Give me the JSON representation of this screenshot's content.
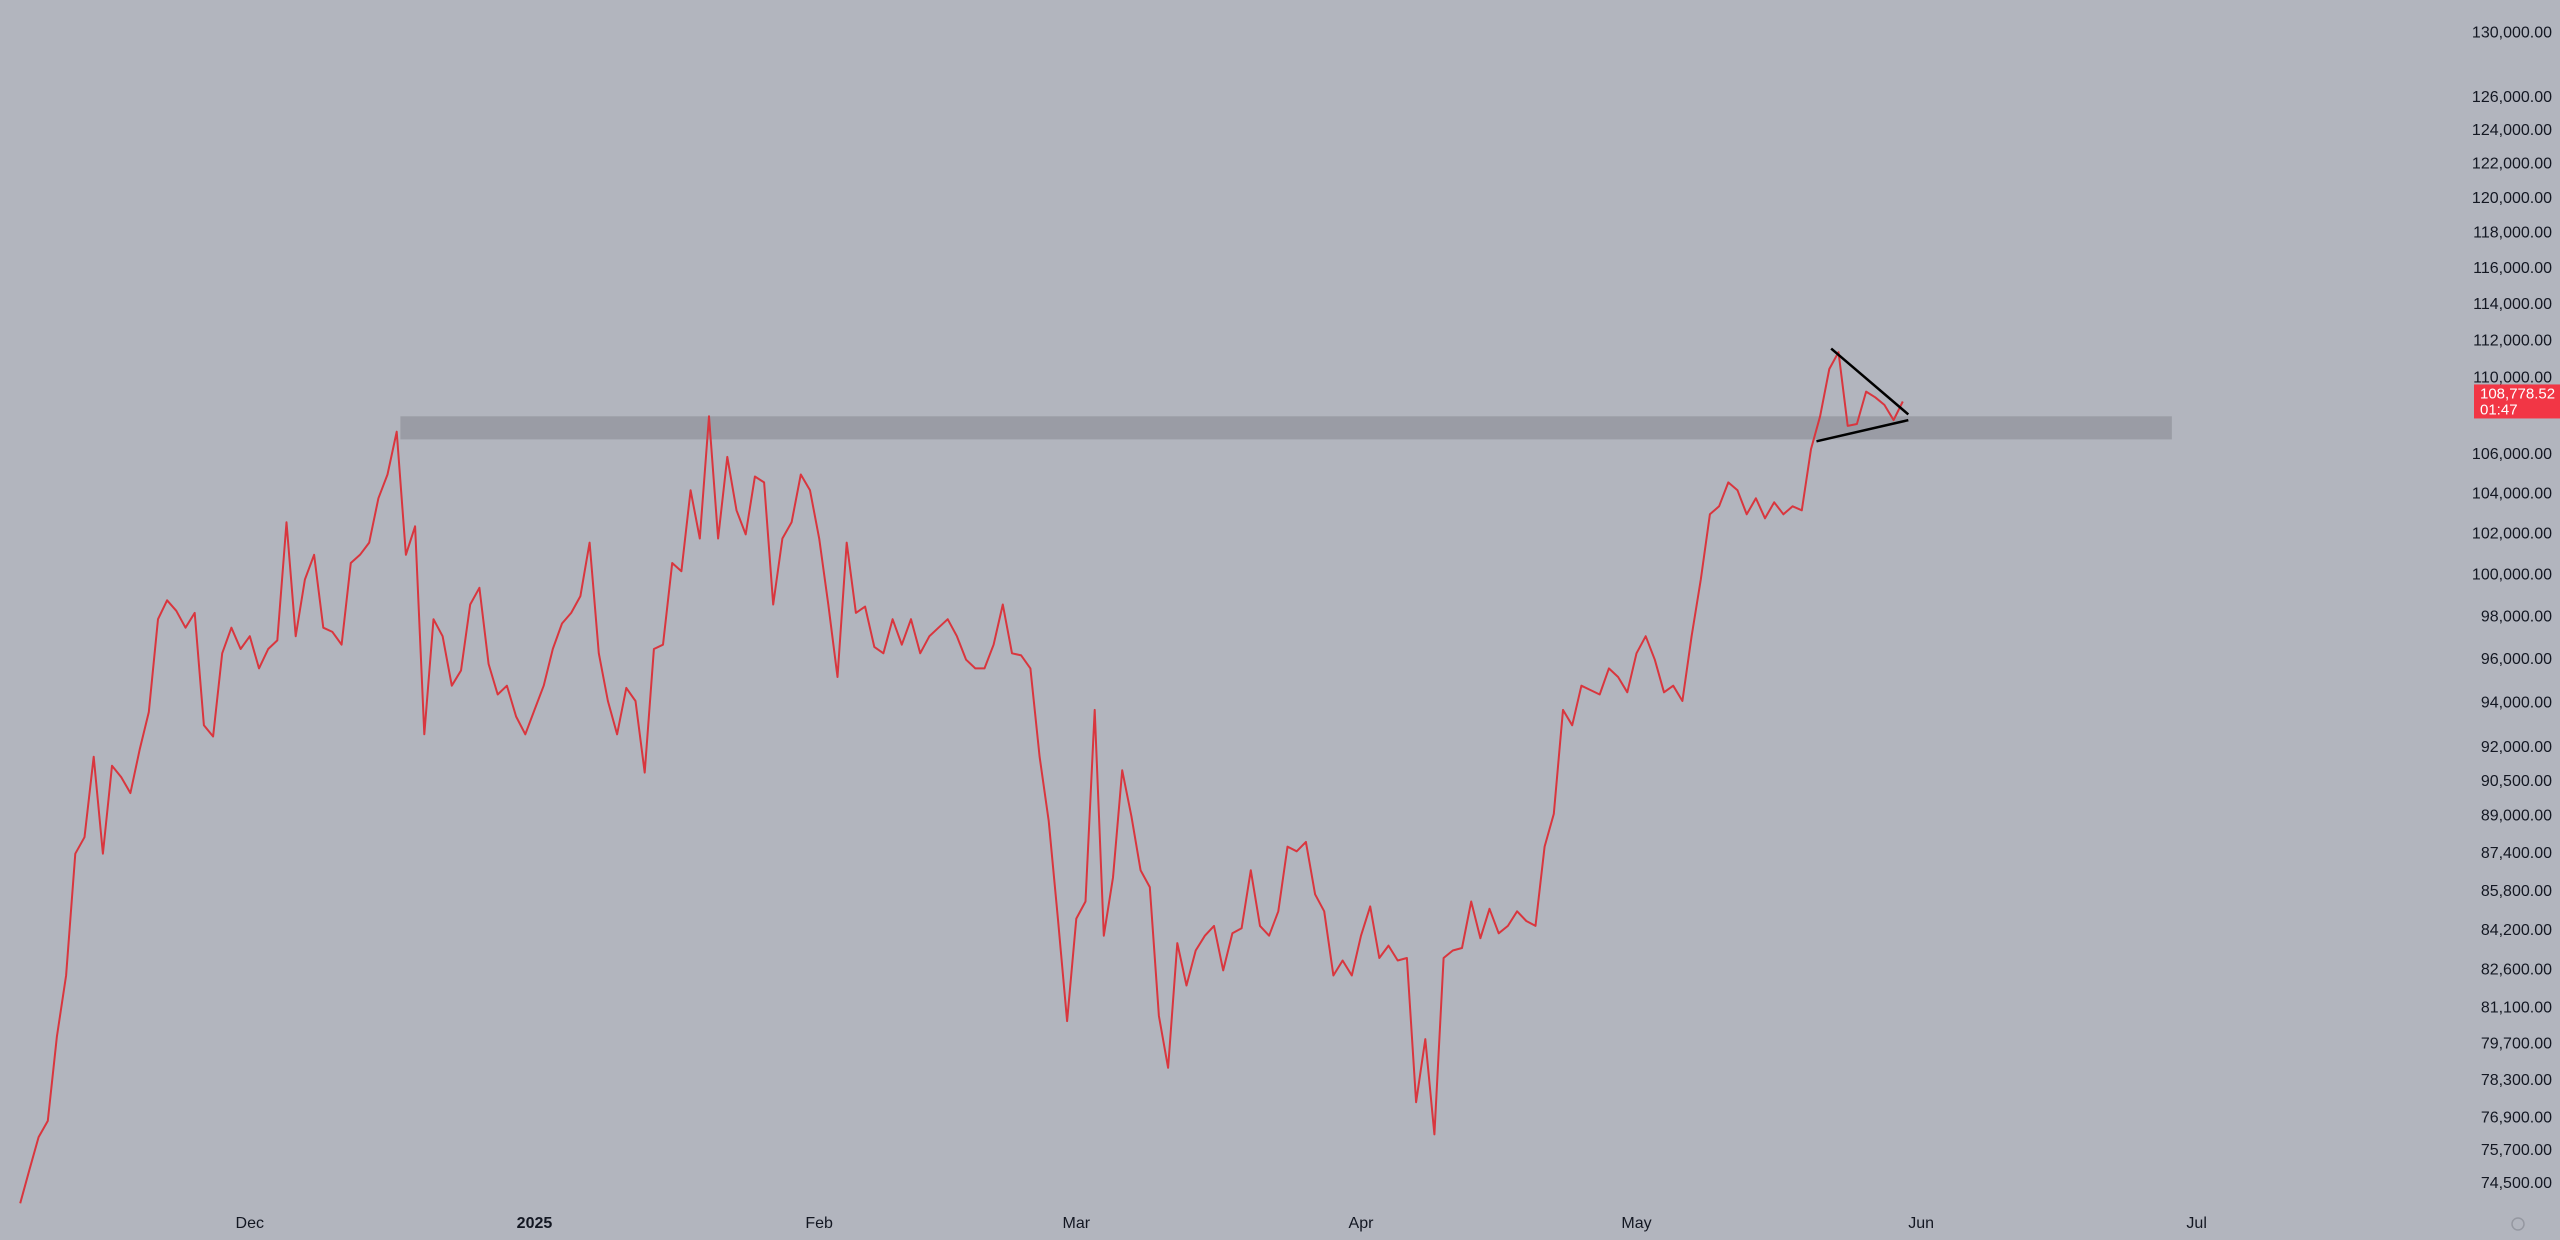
{
  "chart_data": {
    "type": "line",
    "log_scale": true,
    "grid": false,
    "background": "#b2b5be",
    "color": "#d9363e",
    "values": [
      73800,
      75000,
      76200,
      76800,
      80000,
      82400,
      87400,
      88100,
      91600,
      87400,
      91200,
      90700,
      90000,
      91900,
      93600,
      97900,
      98800,
      98300,
      97500,
      98200,
      93000,
      92500,
      96300,
      97500,
      96500,
      97100,
      95600,
      96500,
      96900,
      102600,
      97100,
      99800,
      101000,
      97500,
      97300,
      96700,
      100600,
      101000,
      101600,
      103800,
      105000,
      107200,
      101000,
      102400,
      92600,
      97900,
      97100,
      94800,
      95500,
      98600,
      99400,
      95800,
      94400,
      94800,
      93400,
      92600,
      93700,
      94800,
      96500,
      97700,
      98200,
      99000,
      101600,
      96300,
      94100,
      92600,
      94700,
      94100,
      90900,
      96500,
      96700,
      100600,
      100200,
      104200,
      101800,
      108000,
      101800,
      105900,
      103200,
      102000,
      104900,
      104600,
      98600,
      101800,
      102600,
      105000,
      104200,
      101800,
      98600,
      95200,
      101600,
      98200,
      98500,
      96600,
      96300,
      97900,
      96700,
      97900,
      96300,
      97100,
      97500,
      97900,
      97100,
      96000,
      95600,
      95600,
      96700,
      98600,
      96300,
      96200,
      95600,
      91600,
      88800,
      84700,
      80600,
      84700,
      85400,
      93700,
      84000,
      86400,
      91000,
      89000,
      86700,
      86000,
      80800,
      78800,
      83700,
      82000,
      83400,
      84000,
      84400,
      82600,
      84100,
      84300,
      86700,
      84400,
      84000,
      85000,
      87700,
      87500,
      87900,
      85700,
      85000,
      82400,
      83000,
      82400,
      84000,
      85200,
      83100,
      83600,
      83000,
      83100,
      77500,
      79900,
      76300,
      83100,
      83400,
      83500,
      85400,
      83900,
      85100,
      84100,
      84400,
      85000,
      84600,
      84400,
      87700,
      89100,
      93700,
      93000,
      94800,
      94600,
      94400,
      95600,
      95200,
      94500,
      96300,
      97100,
      96000,
      94500,
      94800,
      94100,
      97100,
      99800,
      103000,
      103400,
      104600,
      104200,
      103000,
      103800,
      102800,
      103600,
      103000,
      103400,
      103200,
      106300,
      108000,
      110500,
      111400,
      107500,
      107600,
      109300,
      109000,
      108600,
      107800,
      108778.52
    ],
    "xlim": [
      -2.2,
      267.2
    ],
    "xticks": [
      {
        "value": 25,
        "label": "Dec"
      },
      {
        "value": 56,
        "label": "2025",
        "bold": true
      },
      {
        "value": 87,
        "label": "Feb"
      },
      {
        "value": 115,
        "label": "Mar"
      },
      {
        "value": 146,
        "label": "Apr"
      },
      {
        "value": 176,
        "label": "May"
      },
      {
        "value": 207,
        "label": "Jun"
      },
      {
        "value": 237,
        "label": "Jul"
      }
    ],
    "ylim": [
      72500,
      132100
    ],
    "yticks": [
      {
        "value": 130000,
        "label": "130,000.00"
      },
      {
        "value": 126000,
        "label": "126,000.00"
      },
      {
        "value": 124000,
        "label": "124,000.00"
      },
      {
        "value": 122000,
        "label": "122,000.00"
      },
      {
        "value": 120000,
        "label": "120,000.00"
      },
      {
        "value": 118000,
        "label": "118,000.00"
      },
      {
        "value": 116000,
        "label": "116,000.00"
      },
      {
        "value": 114000,
        "label": "114,000.00"
      },
      {
        "value": 112000,
        "label": "112,000.00"
      },
      {
        "value": 110000,
        "label": "110,000.00"
      },
      {
        "value": 106000,
        "label": "106,000.00"
      },
      {
        "value": 104000,
        "label": "104,000.00"
      },
      {
        "value": 102000,
        "label": "102,000.00"
      },
      {
        "value": 100000,
        "label": "100,000.00"
      },
      {
        "value": 98000,
        "label": "98,000.00"
      },
      {
        "value": 96000,
        "label": "96,000.00"
      },
      {
        "value": 94000,
        "label": "94,000.00"
      },
      {
        "value": 92000,
        "label": "92,000.00"
      },
      {
        "value": 90500,
        "label": "90,500.00"
      },
      {
        "value": 89000,
        "label": "89,000.00"
      },
      {
        "value": 87400,
        "label": "87,400.00"
      },
      {
        "value": 85800,
        "label": "85,800.00"
      },
      {
        "value": 84200,
        "label": "84,200.00"
      },
      {
        "value": 82600,
        "label": "82,600.00"
      },
      {
        "value": 81100,
        "label": "81,100.00"
      },
      {
        "value": 79700,
        "label": "79,700.00"
      },
      {
        "value": 78300,
        "label": "78,300.00"
      },
      {
        "value": 76900,
        "label": "76,900.00"
      },
      {
        "value": 75700,
        "label": "75,700.00"
      },
      {
        "value": 74500,
        "label": "74,500.00"
      }
    ],
    "last_price": {
      "value": 108778.52,
      "label": "108,778.52",
      "countdown": "01:47",
      "color": "#f23645"
    },
    "annotations": {
      "zone": {
        "low": 106800,
        "high": 108000,
        "start": 41.4,
        "end": 234.3,
        "color": "#9a9ca5"
      },
      "trendlines": [
        {
          "x": [
            197.2,
            205.6
          ],
          "y": [
            111600,
            108100
          ],
          "color": "#000000"
        },
        {
          "x": [
            195.6,
            205.6
          ],
          "y": [
            106700,
            107800
          ],
          "color": "#000000"
        }
      ]
    }
  }
}
